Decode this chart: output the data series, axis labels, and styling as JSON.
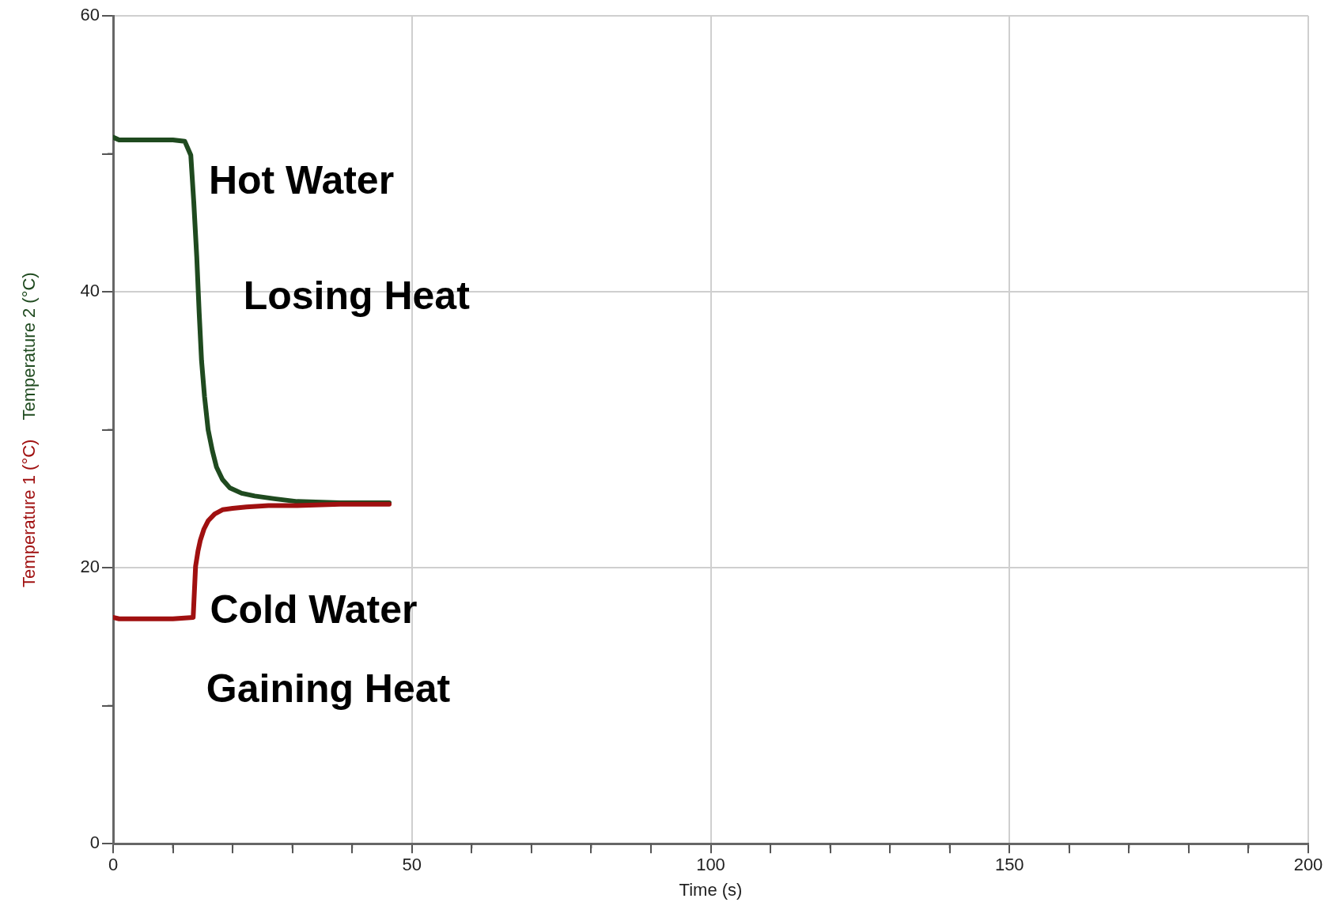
{
  "chart_data": {
    "type": "line",
    "xlabel": "Time (s)",
    "xlim": [
      0,
      200
    ],
    "xticks": [
      0,
      {
        "value": 10,
        "label": null
      },
      {
        "value": 20,
        "label": null
      },
      {
        "value": 30,
        "label": null
      },
      {
        "value": 40,
        "label": null
      },
      50,
      {
        "value": 60,
        "label": null
      },
      {
        "value": 70,
        "label": null
      },
      {
        "value": 80,
        "label": null
      },
      {
        "value": 90,
        "label": null
      },
      100,
      {
        "value": 110,
        "label": null
      },
      {
        "value": 120,
        "label": null
      },
      {
        "value": 130,
        "label": null
      },
      {
        "value": 140,
        "label": null
      },
      150,
      {
        "value": 160,
        "label": null
      },
      {
        "value": 170,
        "label": null
      },
      {
        "value": 180,
        "label": null
      },
      {
        "value": 190,
        "label": null
      },
      200
    ],
    "ylim": [
      0,
      60
    ],
    "yticks": [
      0,
      {
        "value": 10,
        "label": null
      },
      20,
      {
        "value": 30,
        "label": null
      },
      40,
      {
        "value": 50,
        "label": null
      },
      60
    ],
    "grid": true,
    "marker": "none",
    "line_style": "solid",
    "series": [
      {
        "name": "Temperature 1 (°C)",
        "color": "#a01010",
        "x": [
          0,
          1,
          5,
          10,
          13.4,
          13.8,
          14.2,
          14.6,
          15.2,
          15.9,
          17,
          18.3,
          20,
          22.3,
          26,
          30.8,
          38,
          46.2
        ],
        "values": [
          16.4,
          16.3,
          16.3,
          16.3,
          16.4,
          20.1,
          21.2,
          22,
          22.8,
          23.4,
          23.9,
          24.2,
          24.3,
          24.4,
          24.5,
          24.5,
          24.6,
          24.6
        ]
      },
      {
        "name": "Temperature 2 (°C)",
        "color": "#1f4a1f",
        "x": [
          0,
          1,
          5,
          10,
          12,
          13,
          13.5,
          14,
          14.4,
          14.8,
          15.3,
          15.9,
          16.6,
          17.3,
          18.3,
          19.5,
          21.5,
          23.7,
          27,
          30.8,
          38,
          46.2
        ],
        "values": [
          51.2,
          51,
          51,
          51,
          50.9,
          49.9,
          46.5,
          42.5,
          38.5,
          35,
          32.4,
          30,
          28.5,
          27.3,
          26.4,
          25.8,
          25.4,
          25.2,
          25,
          24.8,
          24.7,
          24.7
        ]
      }
    ],
    "annotations": [
      "Hot Water",
      "Losing Heat",
      "Cold Water",
      "Gaining Heat"
    ]
  }
}
